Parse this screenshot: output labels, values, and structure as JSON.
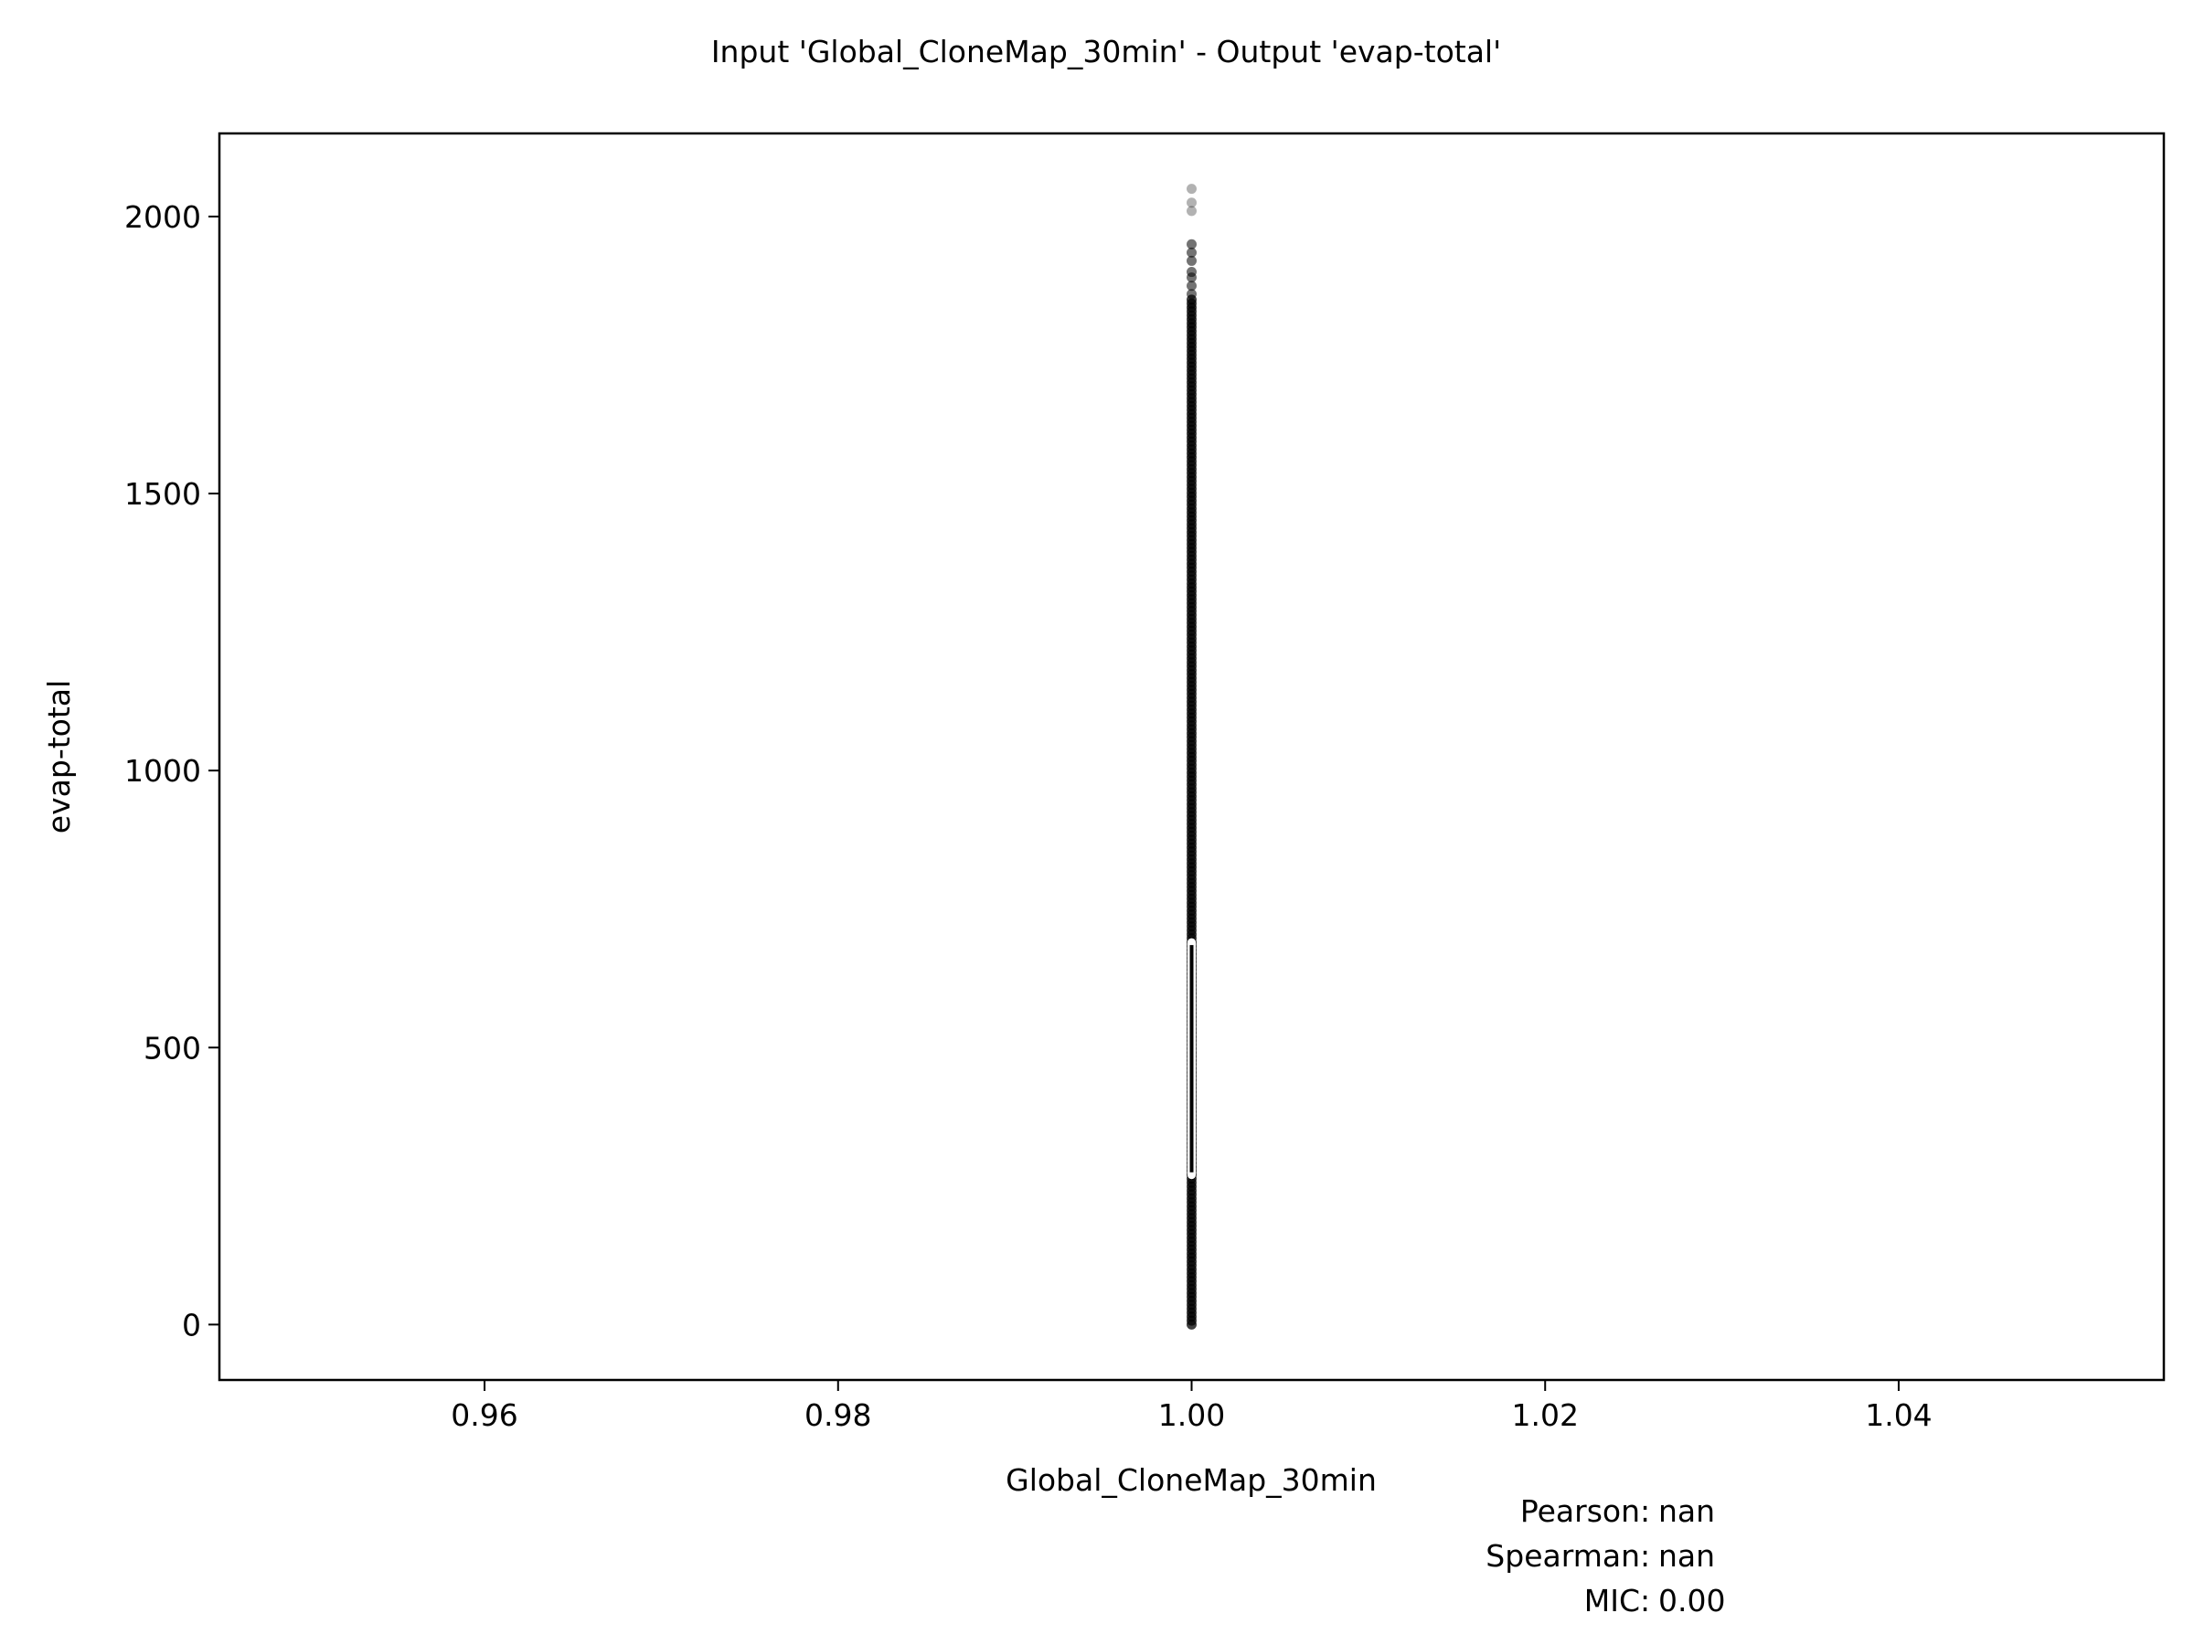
{
  "chart_data": {
    "type": "scatter",
    "title": "Input 'Global_CloneMap_30min' - Output 'evap-total'",
    "xlabel": "Global_CloneMap_30min",
    "ylabel": "evap-total",
    "xlim": [
      0.945,
      1.055
    ],
    "ylim": [
      -100,
      2150
    ],
    "xticks": [
      0.96,
      0.98,
      1.0,
      1.02,
      1.04
    ],
    "xtick_labels": [
      "0.96",
      "0.98",
      "1.00",
      "1.02",
      "1.04"
    ],
    "yticks": [
      0,
      500,
      1000,
      1500,
      2000
    ],
    "ytick_labels": [
      "0",
      "500",
      "1000",
      "1500",
      "2000"
    ],
    "grid": false,
    "point_color": "#000000",
    "series": [
      {
        "x_constant": 1.0,
        "y_dense_range": [
          0,
          1850
        ],
        "y_sparse_points": [
          1860,
          1875,
          1890,
          1900,
          1920,
          1935,
          1950,
          2010,
          2025,
          2050
        ]
      }
    ],
    "median_marker": {
      "x": 1.0,
      "y_range": [
        270,
        690
      ],
      "color": "#ffffff"
    },
    "annotations": [
      {
        "label": "Pearson",
        "value": "nan"
      },
      {
        "label": "Spearman",
        "value": "nan"
      },
      {
        "label": "MIC",
        "value": "0.00"
      }
    ]
  }
}
